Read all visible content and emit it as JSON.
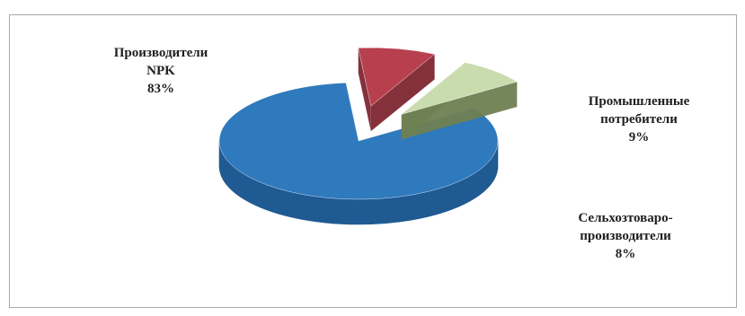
{
  "chart_data": {
    "type": "pie",
    "style": "3d-exploded",
    "legend": "none",
    "slices": [
      {
        "name_lines": [
          "Производители",
          "NPK"
        ],
        "value": 83,
        "pct_label": "83%",
        "color": "#2f79bd",
        "side_color": "#1f5a92"
      },
      {
        "name_lines": [
          "Промышленные",
          "потребители"
        ],
        "value": 9,
        "pct_label": "9%",
        "color": "#b8404e",
        "side_color": "#7e2630"
      },
      {
        "name_lines": [
          "Сельхозтоваро-",
          "производители"
        ],
        "value": 8,
        "pct_label": "8%",
        "color": "#c9dcae",
        "side_color": "#6f7f52"
      }
    ]
  }
}
